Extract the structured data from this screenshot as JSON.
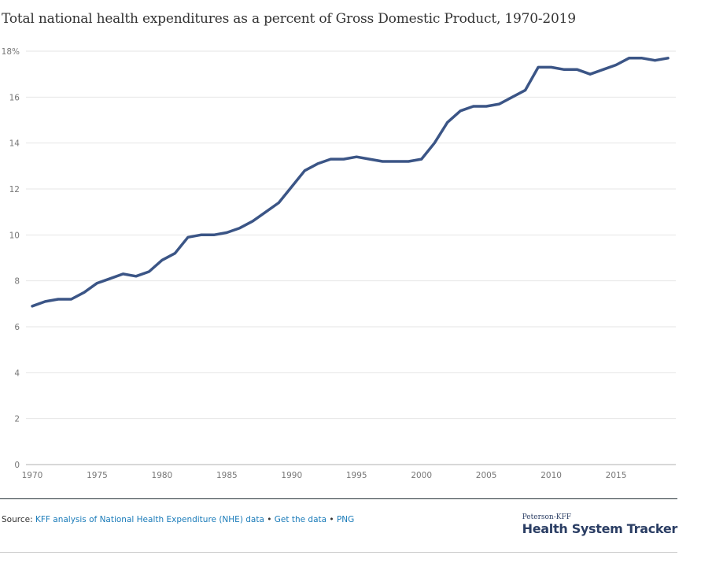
{
  "chart_data": {
    "type": "line",
    "title": "Total national health expenditures as a percent of Gross Domestic Product, 1970-2019",
    "xlabel": "",
    "ylabel": "",
    "xlim": [
      1970,
      2019
    ],
    "ylim": [
      0,
      18
    ],
    "x_ticks": [
      "1970",
      "1975",
      "1980",
      "1985",
      "1990",
      "1995",
      "2000",
      "2005",
      "2010",
      "2015"
    ],
    "y_ticks": [
      "0",
      "2",
      "4",
      "6",
      "8",
      "10",
      "12",
      "14",
      "16",
      "18%"
    ],
    "grid": true,
    "line_color": "#3b5586",
    "series": [
      {
        "x": [
          1970,
          1971,
          1972,
          1973,
          1974,
          1975,
          1976,
          1977,
          1978,
          1979,
          1980,
          1981,
          1982,
          1983,
          1984,
          1985,
          1986,
          1987,
          1988,
          1989,
          1990,
          1991,
          1992,
          1993,
          1994,
          1995,
          1996,
          1997,
          1998,
          1999,
          2000,
          2001,
          2002,
          2003,
          2004,
          2005,
          2006,
          2007,
          2008,
          2009,
          2010,
          2011,
          2012,
          2013,
          2014,
          2015,
          2016,
          2017,
          2018,
          2019
        ],
        "values": [
          6.9,
          7.1,
          7.2,
          7.2,
          7.5,
          7.9,
          8.1,
          8.3,
          8.2,
          8.4,
          8.9,
          9.2,
          9.9,
          10.0,
          10.0,
          10.1,
          10.3,
          10.6,
          11.0,
          11.4,
          12.1,
          12.8,
          13.1,
          13.3,
          13.3,
          13.4,
          13.3,
          13.2,
          13.2,
          13.2,
          13.3,
          14.0,
          14.9,
          15.4,
          15.6,
          15.6,
          15.7,
          16.0,
          16.3,
          17.3,
          17.3,
          17.2,
          17.2,
          17.0,
          17.2,
          17.4,
          17.7,
          17.7,
          17.6,
          17.7
        ]
      }
    ]
  },
  "footer": {
    "source_prefix": "Source: ",
    "source_link": "KFF analysis of National Health Expenditure (NHE) data",
    "sep1": " • ",
    "get_data": "Get the data",
    "sep2": " • ",
    "png": "PNG"
  },
  "brand": {
    "small": "Peterson-KFF",
    "big": "Health System Tracker"
  }
}
